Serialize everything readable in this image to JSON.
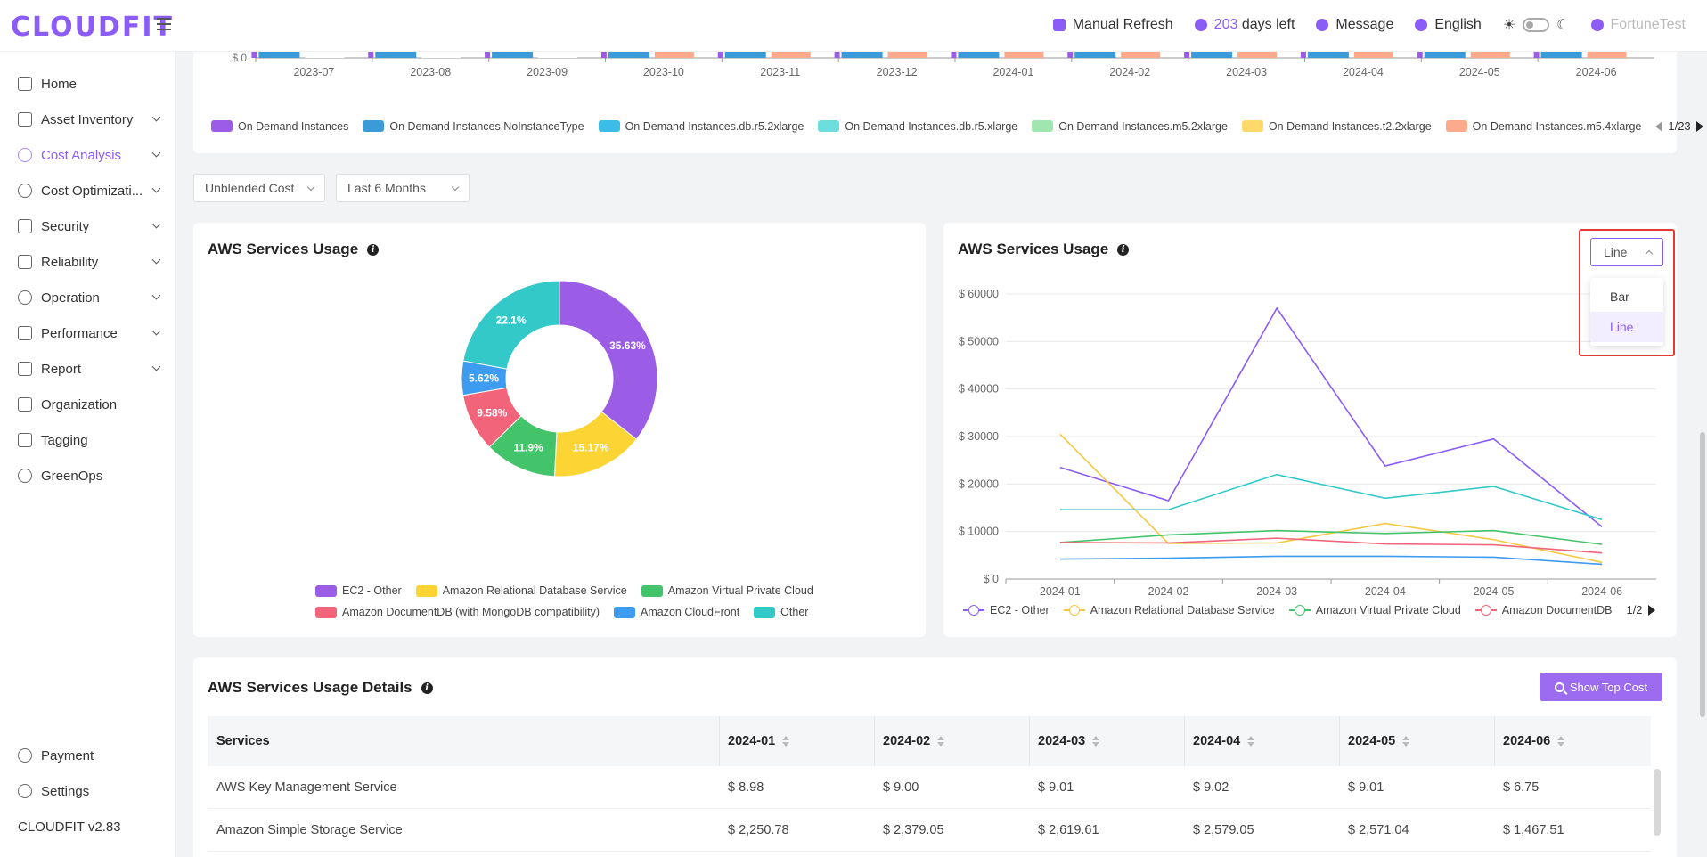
{
  "header": {
    "logo": "CLOUDFIT",
    "manual_refresh": "Manual Refresh",
    "days_num": "203",
    "days_text": "days left",
    "message": "Message",
    "language": "English",
    "user": "FortuneTest"
  },
  "sidebar": {
    "items": [
      {
        "label": "Home"
      },
      {
        "label": "Asset Inventory"
      },
      {
        "label": "Cost Analysis"
      },
      {
        "label": "Cost Optimizati..."
      },
      {
        "label": "Security"
      },
      {
        "label": "Reliability"
      },
      {
        "label": "Operation"
      },
      {
        "label": "Performance"
      },
      {
        "label": "Report"
      },
      {
        "label": "Organization"
      },
      {
        "label": "Tagging"
      },
      {
        "label": "GreenOps"
      }
    ],
    "payment": "Payment",
    "settings": "Settings",
    "version": "CLOUDFIT v2.83"
  },
  "top_chart": {
    "y_tick": "$ 0",
    "months": [
      "2023-07",
      "2023-08",
      "2023-09",
      "2023-10",
      "2023-11",
      "2023-12",
      "2024-01",
      "2024-02",
      "2024-03",
      "2024-04",
      "2024-05",
      "2024-06"
    ],
    "legend": [
      {
        "name": "On Demand Instances",
        "color": "#9c5ce6"
      },
      {
        "name": "On Demand Instances.NoInstanceType",
        "color": "#3b9bd8"
      },
      {
        "name": "On Demand Instances.db.r5.2xlarge",
        "color": "#3cbde8"
      },
      {
        "name": "On Demand Instances.db.r5.xlarge",
        "color": "#6ddede"
      },
      {
        "name": "On Demand Instances.m5.2xlarge",
        "color": "#9fe6b0"
      },
      {
        "name": "On Demand Instances.t2.2xlarge",
        "color": "#fcd96a"
      },
      {
        "name": "On Demand Instances.m5.4xlarge",
        "color": "#fca98c"
      }
    ],
    "pager": "1/23"
  },
  "filters": {
    "cost_type": "Unblended Cost",
    "period": "Last 6 Months"
  },
  "pie_card": {
    "title": "AWS Services Usage",
    "legend": [
      {
        "name": "EC2 - Other",
        "color": "#9b5de5"
      },
      {
        "name": "Amazon Relational Database Service",
        "color": "#fcd535"
      },
      {
        "name": "Amazon Virtual Private Cloud",
        "color": "#43c46a"
      },
      {
        "name": "Amazon DocumentDB (with MongoDB compatibility)",
        "color": "#f2647a"
      },
      {
        "name": "Amazon CloudFront",
        "color": "#3d9bf0"
      },
      {
        "name": "Other",
        "color": "#33c9c9"
      }
    ]
  },
  "line_card": {
    "title": "AWS Services Usage",
    "chart_type_value": "Line",
    "chart_type_options": [
      "Bar",
      "Line"
    ],
    "legend": [
      {
        "name": "EC2 - Other",
        "color": "#8b5cf6"
      },
      {
        "name": "Amazon Relational Database Service",
        "color": "#f5c842"
      },
      {
        "name": "Amazon Virtual Private Cloud",
        "color": "#43c46a"
      },
      {
        "name": "Amazon DocumentDB",
        "color": "#f2647a"
      }
    ],
    "pager": "1/2"
  },
  "chart_data": [
    {
      "type": "pie",
      "title": "AWS Services Usage",
      "labels": [
        "EC2 - Other",
        "Amazon Relational Database Service",
        "Amazon Virtual Private Cloud",
        "Amazon DocumentDB (with MongoDB compatibility)",
        "Amazon CloudFront",
        "Other"
      ],
      "values": [
        35.63,
        15.17,
        11.9,
        9.58,
        5.62,
        22.1
      ],
      "value_labels": [
        "35.63%",
        "15.17%",
        "11.9%",
        "9.58%",
        "5.62%",
        "22.1%"
      ],
      "colors": [
        "#9b5de5",
        "#fcd535",
        "#43c46a",
        "#f2647a",
        "#3d9bf0",
        "#33c9c9"
      ],
      "donut": true
    },
    {
      "type": "line",
      "title": "AWS Services Usage",
      "x": [
        "2024-01",
        "2024-02",
        "2024-03",
        "2024-04",
        "2024-05",
        "2024-06"
      ],
      "y_ticks": [
        "$ 0",
        "$ 10000",
        "$ 20000",
        "$ 30000",
        "$ 40000",
        "$ 50000",
        "$ 60000"
      ],
      "ylim": [
        0,
        60000
      ],
      "grid": true,
      "legend_position": "bottom",
      "series": [
        {
          "name": "EC2 - Other",
          "color": "#8b5cf6",
          "values": [
            23500,
            16500,
            57000,
            23800,
            29500,
            11000
          ]
        },
        {
          "name": "Amazon Relational Database Service",
          "color": "#f5c842",
          "values": [
            30500,
            7500,
            7600,
            11700,
            8300,
            3500
          ]
        },
        {
          "name": "Amazon Virtual Private Cloud",
          "color": "#43c46a",
          "values": [
            7700,
            9300,
            10200,
            9600,
            10200,
            7300
          ]
        },
        {
          "name": "Amazon DocumentDB",
          "color": "#f2647a",
          "values": [
            7700,
            7600,
            8600,
            7400,
            7200,
            5500
          ]
        },
        {
          "name": "Amazon CloudFront",
          "color": "#3d9bf0",
          "values": [
            4200,
            4400,
            4800,
            4800,
            4600,
            3100
          ]
        },
        {
          "name": "Other",
          "color": "#33c9c9",
          "values": [
            14600,
            14600,
            22000,
            17000,
            19500,
            12500
          ]
        }
      ]
    }
  ],
  "details": {
    "title": "AWS Services Usage Details",
    "show_top_cost": "Show Top Cost",
    "columns": [
      "Services",
      "2024-01",
      "2024-02",
      "2024-03",
      "2024-04",
      "2024-05",
      "2024-06"
    ],
    "rows": [
      [
        "AWS Key Management Service",
        "$ 8.98",
        "$ 9.00",
        "$ 9.01",
        "$ 9.02",
        "$ 9.01",
        "$ 6.75"
      ],
      [
        "Amazon Simple Storage Service",
        "$ 2,250.78",
        "$ 2,379.05",
        "$ 2,619.61",
        "$ 2,579.05",
        "$ 2,571.04",
        "$ 1,467.51"
      ]
    ]
  }
}
